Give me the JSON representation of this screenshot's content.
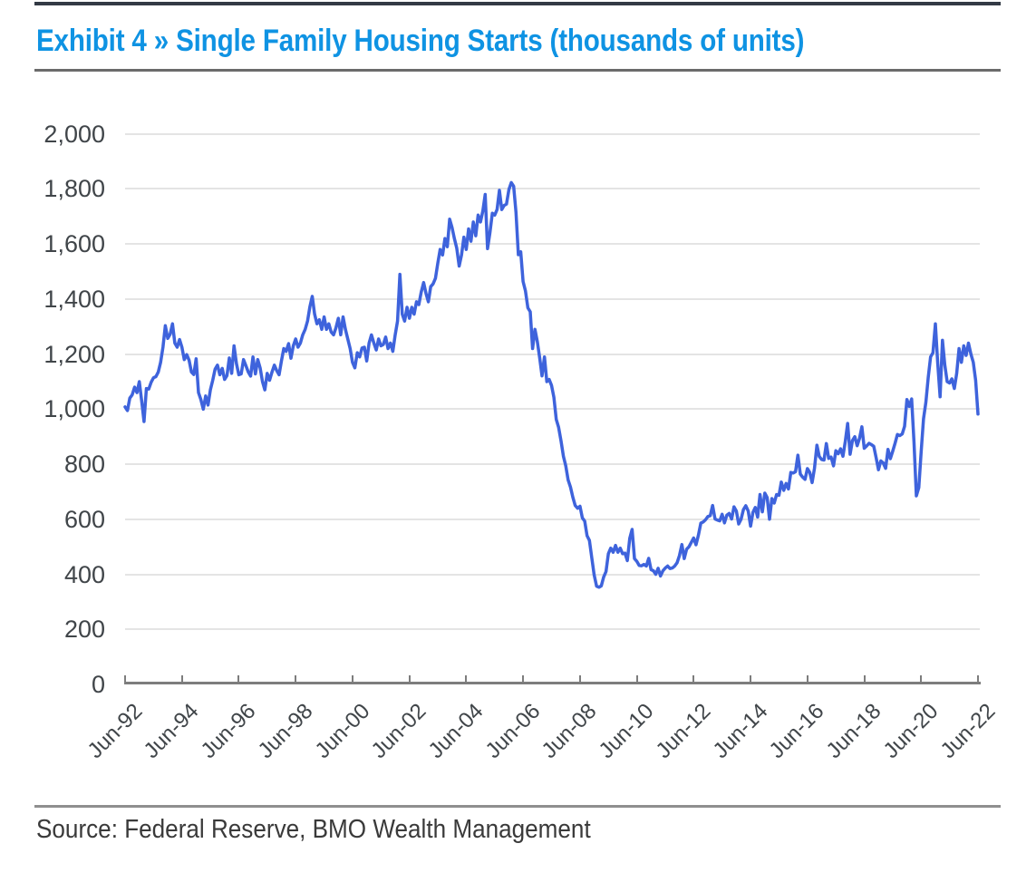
{
  "page": {
    "title": "Exhibit 4 » Single Family Housing Starts (thousands of units)",
    "source": "Source: Federal Reserve, BMO Wealth Management"
  },
  "colors": {
    "title_blue": "#0f93e3",
    "line_blue": "#3e63dc",
    "gridline": "#e4e4e4",
    "axis_gray": "#7d7d7d",
    "tick_label_gray": "#404549",
    "top_rule_dark": "#333a45",
    "divider_gray": "#6b6b6b",
    "source_rule_gray": "#8f8f8f"
  },
  "chart_data": {
    "type": "line",
    "title": "Exhibit 4 » Single Family Housing Starts (thousands of units)",
    "xlabel": "",
    "ylabel": "",
    "ylim": [
      0,
      2000
    ],
    "y_ticks": [
      0,
      200,
      400,
      600,
      800,
      1000,
      1200,
      1400,
      1600,
      1800,
      2000
    ],
    "y_tick_labels": [
      "0",
      "200",
      "400",
      "600",
      "800",
      "1,000",
      "1,200",
      "1,400",
      "1,600",
      "1,800",
      "2,000"
    ],
    "x_tick_labels": [
      "Jun-92",
      "Jun-94",
      "Jun-96",
      "Jun-98",
      "Jun-00",
      "Jun-02",
      "Jun-04",
      "Jun-06",
      "Jun-08",
      "Jun-10",
      "Jun-12",
      "Jun-14",
      "Jun-16",
      "Jun-18",
      "Jun-20",
      "Jun-22"
    ],
    "x_range": [
      "Jun-1992",
      "Jun-2022"
    ],
    "frequency": "monthly",
    "grid": "horizontal",
    "legend_position": "none",
    "series": [
      {
        "name": "Single Family Housing Starts (thousands of units)",
        "color": "#3e63dc",
        "values": [
          1008,
          995,
          1040,
          1052,
          1080,
          1060,
          1100,
          1030,
          955,
          1075,
          1073,
          1098,
          1114,
          1118,
          1135,
          1170,
          1225,
          1303,
          1257,
          1272,
          1310,
          1240,
          1225,
          1253,
          1225,
          1180,
          1198,
          1178,
          1135,
          1126,
          1183,
          1060,
          1035,
          1000,
          1048,
          1015,
          1070,
          1105,
          1145,
          1160,
          1125,
          1148,
          1108,
          1122,
          1186,
          1130,
          1230,
          1165,
          1125,
          1128,
          1180,
          1158,
          1135,
          1120,
          1190,
          1128,
          1180,
          1150,
          1100,
          1070,
          1130,
          1105,
          1135,
          1160,
          1140,
          1125,
          1175,
          1220,
          1210,
          1238,
          1185,
          1230,
          1255,
          1225,
          1240,
          1270,
          1290,
          1320,
          1372,
          1410,
          1345,
          1310,
          1325,
          1290,
          1335,
          1290,
          1310,
          1280,
          1270,
          1295,
          1330,
          1270,
          1335,
          1290,
          1255,
          1220,
          1170,
          1150,
          1205,
          1190,
          1222,
          1225,
          1175,
          1240,
          1270,
          1240,
          1215,
          1255,
          1230,
          1235,
          1262,
          1220,
          1240,
          1210,
          1270,
          1320,
          1490,
          1345,
          1320,
          1370,
          1330,
          1370,
          1345,
          1390,
          1380,
          1425,
          1460,
          1420,
          1390,
          1445,
          1455,
          1475,
          1530,
          1580,
          1560,
          1620,
          1590,
          1690,
          1660,
          1620,
          1585,
          1520,
          1560,
          1625,
          1580,
          1655,
          1610,
          1680,
          1630,
          1705,
          1680,
          1720,
          1780,
          1583,
          1640,
          1712,
          1705,
          1725,
          1795,
          1725,
          1740,
          1745,
          1798,
          1823,
          1810,
          1714,
          1561,
          1572,
          1464,
          1430,
          1368,
          1354,
          1220,
          1290,
          1246,
          1187,
          1121,
          1190,
          1100,
          1108,
          1086,
          1043,
          963,
          934,
          884,
          829,
          794,
          743,
          717,
          680,
          650,
          640,
          647,
          605,
          593,
          540,
          523,
          460,
          398,
          357,
          353,
          358,
          390,
          410,
          475,
          495,
          480,
          505,
          480,
          495,
          475,
          477,
          450,
          531,
          563,
          457,
          447,
          432,
          431,
          436,
          430,
          458,
          417,
          413,
          400,
          422,
          394,
          413,
          423,
          430,
          421,
          423,
          430,
          442,
          468,
          508,
          457,
          491,
          500,
          516,
          532,
          507,
          543,
          586,
          590,
          598,
          610,
          613,
          650,
          601,
          597,
          594,
          618,
          587,
          615,
          621,
          601,
          645,
          630,
          583,
          600,
          635,
          649,
          630,
          575,
          625,
          643,
          608,
          690,
          627,
          695,
          679,
          600,
          675,
          659,
          690,
          687,
          735,
          705,
          730,
          710,
          770,
          768,
          773,
          833,
          764,
          753,
          745,
          784,
          770,
          733,
          785,
          869,
          828,
          817,
          815,
          875,
          821,
          826,
          794,
          849,
          838,
          856,
          829,
          883,
          948,
          836,
          886,
          900,
          867,
          894,
          936,
          858,
          866,
          876,
          871,
          865,
          824,
          780,
          812,
          805,
          785,
          854,
          820,
          847,
          876,
          908,
          904,
          910,
          938,
          1035,
          1010,
          1037,
          880,
          685,
          715,
          845,
          965,
          1025,
          1115,
          1190,
          1205,
          1310,
          1165,
          1045,
          1250,
          1160,
          1100,
          1095,
          1110,
          1075,
          1130,
          1220,
          1170,
          1230,
          1195,
          1240,
          1200,
          1170,
          1105,
          982
        ]
      }
    ]
  }
}
